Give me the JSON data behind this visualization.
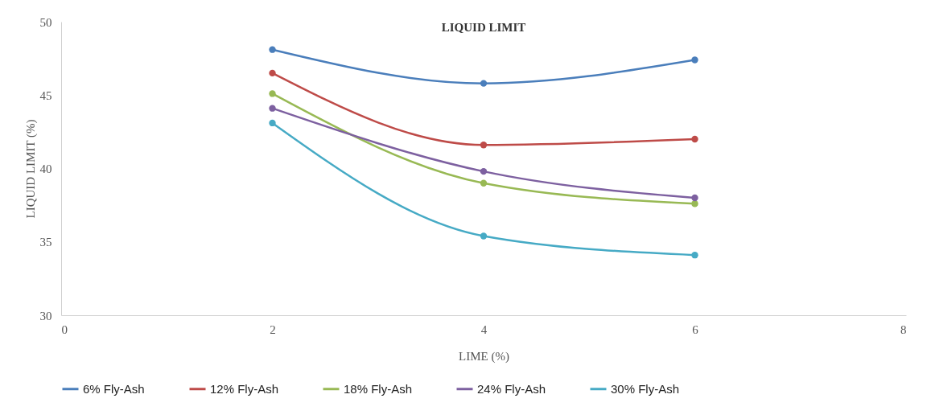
{
  "chart_data": {
    "type": "line",
    "title": "LIQUID LIMIT",
    "xlabel": "LIME (%)",
    "ylabel": "LIQUID  LIMIT  (%)",
    "x": [
      2,
      4,
      6
    ],
    "xlim": [
      0,
      8
    ],
    "xticks": [
      0,
      2,
      4,
      6,
      8
    ],
    "ylim": [
      30,
      50
    ],
    "yticks": [
      30,
      35,
      40,
      45,
      50
    ],
    "grid": false,
    "legend": "bottom",
    "marker": "circle",
    "line_style": "solid",
    "series": [
      {
        "name": "6%   Fly-Ash",
        "color": "#4a7ebb",
        "values": [
          48.1,
          45.8,
          47.4
        ]
      },
      {
        "name": "12%   Fly-Ash",
        "color": "#be4b48",
        "values": [
          46.5,
          41.6,
          42.0
        ]
      },
      {
        "name": "18%   Fly-Ash",
        "color": "#98b954",
        "values": [
          45.1,
          39.0,
          37.6
        ]
      },
      {
        "name": "24%   Fly-Ash",
        "color": "#7d60a0",
        "values": [
          44.1,
          39.8,
          38.0
        ]
      },
      {
        "name": "30%   Fly-Ash",
        "color": "#46aac5",
        "values": [
          43.1,
          35.4,
          34.1
        ]
      }
    ]
  }
}
